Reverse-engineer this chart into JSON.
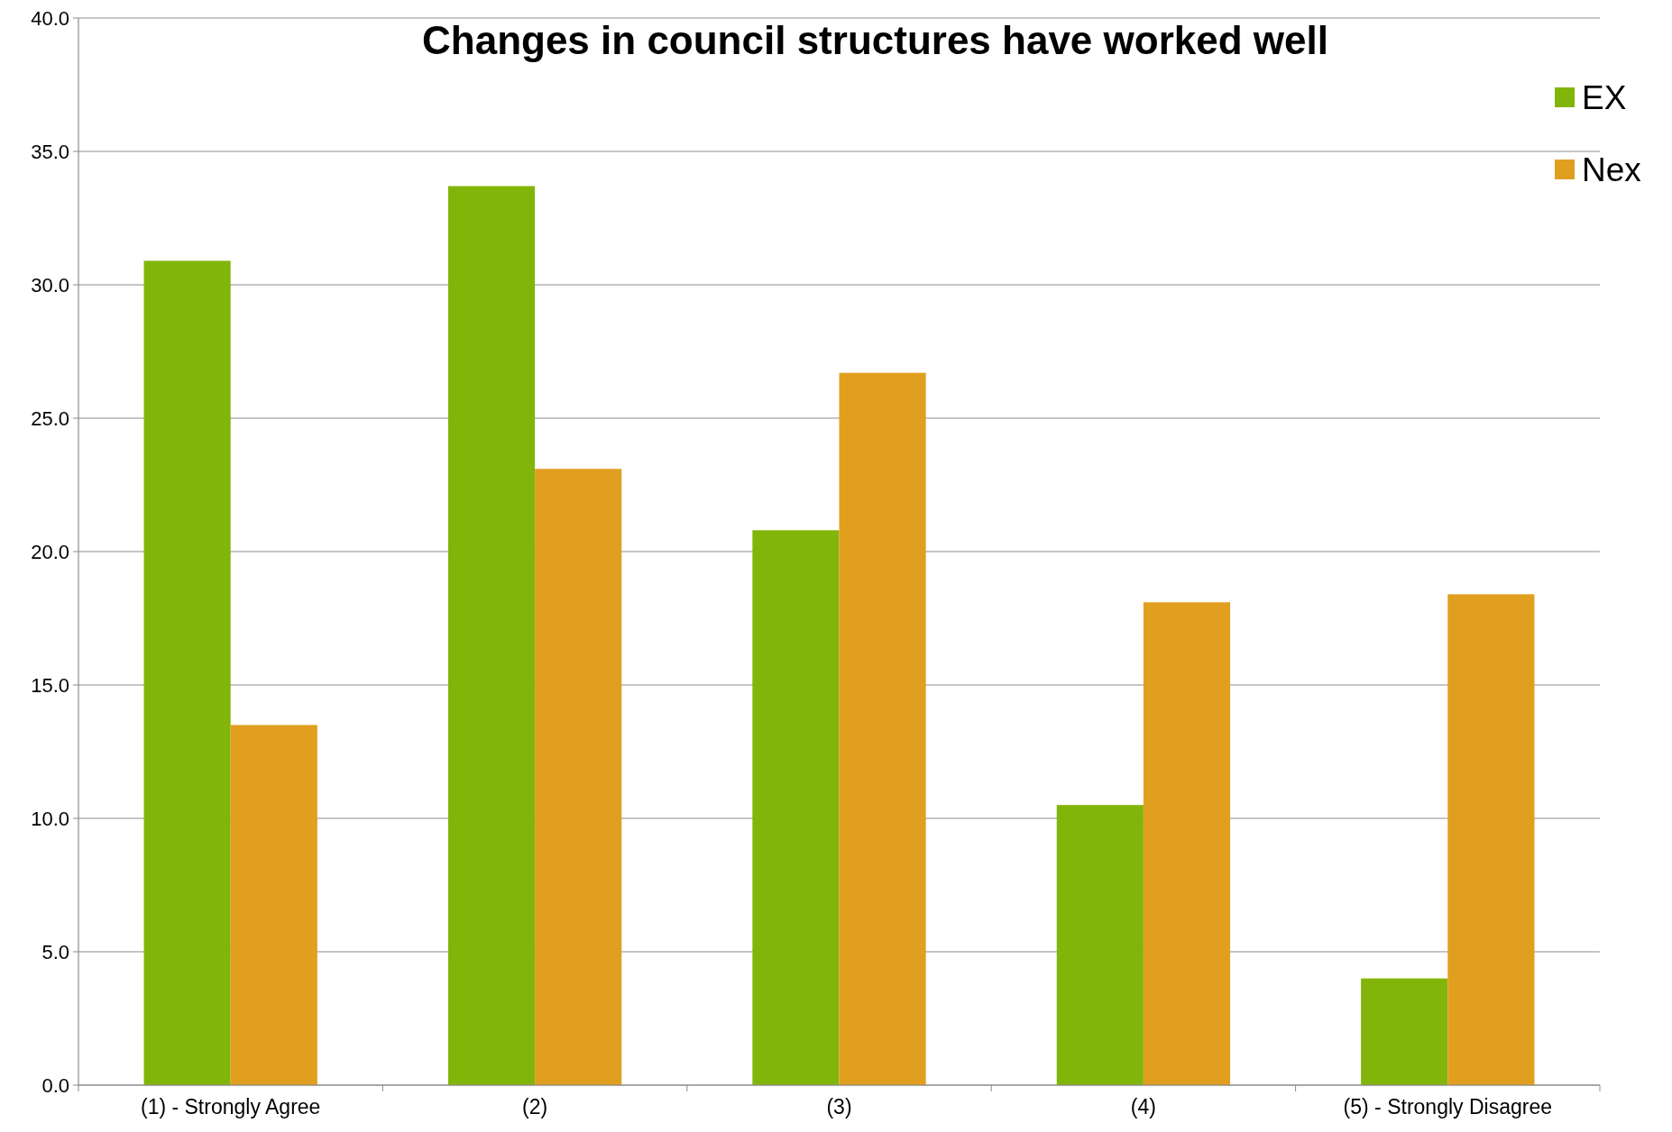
{
  "chart_data": {
    "type": "bar",
    "title": "Changes in council structures have worked well",
    "categories": [
      "(1) - Strongly Agree",
      "(2)",
      "(3)",
      "(4)",
      "(5) - Strongly Disagree"
    ],
    "series": [
      {
        "name": "EX",
        "color": "#82b50a",
        "values": [
          30.9,
          33.7,
          20.8,
          10.5,
          4.0
        ]
      },
      {
        "name": "Nex",
        "color": "#e19f20",
        "values": [
          13.5,
          23.1,
          26.7,
          18.1,
          18.4
        ]
      }
    ],
    "ylim": [
      0,
      40
    ],
    "yticks": [
      {
        "value": 0,
        "label": "0.0"
      },
      {
        "value": 5,
        "label": "5.0"
      },
      {
        "value": 10,
        "label": "10.0"
      },
      {
        "value": 15,
        "label": "15.0"
      },
      {
        "value": 20,
        "label": "20.0"
      },
      {
        "value": 25,
        "label": "25.0"
      },
      {
        "value": 30,
        "label": "30.0"
      },
      {
        "value": 35,
        "label": "35.0"
      },
      {
        "value": 40,
        "label": "40.0"
      }
    ],
    "grid": "y",
    "legend": "top right"
  }
}
